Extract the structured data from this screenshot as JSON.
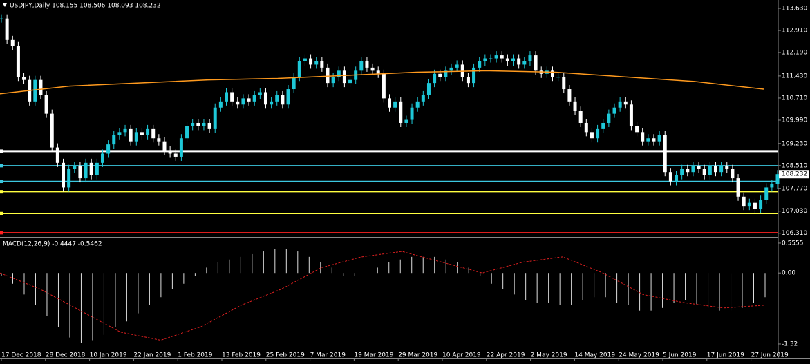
{
  "header": {
    "title": "USDJPY,Daily  108.155 108.506 108.093 108.232"
  },
  "price_axis": {
    "labels": [
      "113.630",
      "112.910",
      "112.190",
      "111.430",
      "110.710",
      "109.990",
      "109.230",
      "108.510",
      "107.770",
      "107.030",
      "106.310"
    ],
    "current": "108.232"
  },
  "candles": {
    "up_color": "#1ec8d8",
    "down_color": "#ffffff",
    "closes": [
      113.3,
      112.6,
      112.4,
      111.4,
      111.3,
      110.6,
      111.3,
      110.8,
      110.2,
      109.1,
      108.6,
      107.8,
      108.4,
      108.5,
      108.1,
      108.6,
      108.2,
      108.6,
      108.9,
      109.2,
      109.5,
      109.6,
      109.7,
      109.3,
      109.6,
      109.5,
      109.7,
      109.4,
      109.3,
      109.0,
      108.9,
      108.8,
      109.4,
      109.8,
      109.9,
      109.8,
      109.9,
      109.7,
      110.4,
      110.6,
      110.9,
      110.6,
      110.5,
      110.7,
      110.6,
      110.8,
      110.9,
      110.5,
      110.6,
      110.8,
      110.5,
      111.0,
      111.4,
      111.9,
      112.0,
      111.8,
      111.9,
      111.7,
      111.2,
      111.4,
      111.6,
      111.2,
      111.3,
      111.6,
      111.9,
      111.7,
      111.6,
      111.5,
      110.7,
      110.4,
      110.6,
      109.9,
      110.0,
      110.4,
      110.6,
      110.8,
      111.2,
      111.5,
      111.4,
      111.6,
      111.7,
      111.8,
      111.4,
      111.2,
      111.7,
      111.9,
      112.0,
      112.0,
      112.1,
      112.0,
      111.9,
      112.0,
      111.8,
      111.9,
      112.1,
      111.6,
      111.5,
      111.6,
      111.4,
      111.4,
      111.0,
      110.6,
      110.3,
      109.9,
      109.6,
      109.4,
      109.7,
      109.9,
      110.2,
      110.4,
      110.6,
      110.5,
      109.8,
      109.6,
      109.3,
      109.4,
      109.3,
      109.5,
      108.3,
      108.0,
      108.2,
      108.4,
      108.3,
      108.5,
      108.4,
      108.2,
      108.5,
      108.3,
      108.5,
      108.4,
      108.1,
      107.5,
      107.2,
      107.3,
      107.1,
      107.4,
      107.8,
      107.9,
      108.232
    ]
  },
  "moving_average": {
    "color": "#ff9a1e",
    "values": [
      110.85,
      111.1,
      111.2,
      111.3,
      111.35,
      111.45,
      111.55,
      111.6,
      111.55,
      111.4,
      111.25,
      111.0
    ]
  },
  "levels": [
    {
      "value": 108.98,
      "color": "#ffffff"
    },
    {
      "value": 108.51,
      "color": "#3cc8e0"
    },
    {
      "value": 108.0,
      "color": "#3cc8e0"
    },
    {
      "value": 107.66,
      "color": "#ffff40"
    },
    {
      "value": 106.95,
      "color": "#ffff40"
    },
    {
      "value": 106.33,
      "color": "#ff2020"
    }
  ],
  "macd": {
    "label": "MACD(12,26,9) -0.4447 -0.5462",
    "axis_labels": [
      "0.5555",
      "0.00",
      "-1.32"
    ],
    "histogram": [
      -0.05,
      -0.2,
      -0.4,
      -0.6,
      -0.8,
      -1.0,
      -1.2,
      -1.3,
      -1.25,
      -1.15,
      -1.0,
      -0.9,
      -0.75,
      -0.6,
      -0.45,
      -0.3,
      -0.2,
      -0.05,
      0.1,
      0.2,
      0.25,
      0.3,
      0.35,
      0.4,
      0.45,
      0.45,
      0.4,
      0.3,
      0.2,
      0.1,
      -0.05,
      -0.05,
      0.0,
      0.1,
      0.2,
      0.25,
      0.3,
      0.3,
      0.3,
      0.25,
      0.2,
      0.1,
      -0.05,
      -0.2,
      -0.3,
      -0.4,
      -0.5,
      -0.55,
      -0.55,
      -0.6,
      -0.6,
      -0.5,
      -0.45,
      -0.45,
      -0.55,
      -0.6,
      -0.7,
      -0.7,
      -0.65,
      -0.55,
      -0.5,
      -0.6,
      -0.65,
      -0.7,
      -0.7,
      -0.65,
      -0.55,
      -0.45
    ],
    "signal": [
      0.0,
      -0.3,
      -0.7,
      -1.1,
      -1.25,
      -1.0,
      -0.6,
      -0.3,
      0.1,
      0.3,
      0.4,
      0.2,
      0.0,
      0.2,
      0.3,
      0.0,
      -0.4,
      -0.55,
      -0.65,
      -0.6
    ]
  },
  "dates": [
    "17 Dec 2018",
    "28 Dec 2018",
    "10 Jan 2019",
    "22 Jan 2019",
    "1 Feb 2019",
    "13 Feb 2019",
    "25 Feb 2019",
    "7 Mar 2019",
    "19 Mar 2019",
    "29 Mar 2019",
    "10 Apr 2019",
    "22 Apr 2019",
    "2 May 2019",
    "14 May 2019",
    "24 May 2019",
    "5 Jun 2019",
    "17 Jun 2019",
    "27 Jun 2019"
  ]
}
